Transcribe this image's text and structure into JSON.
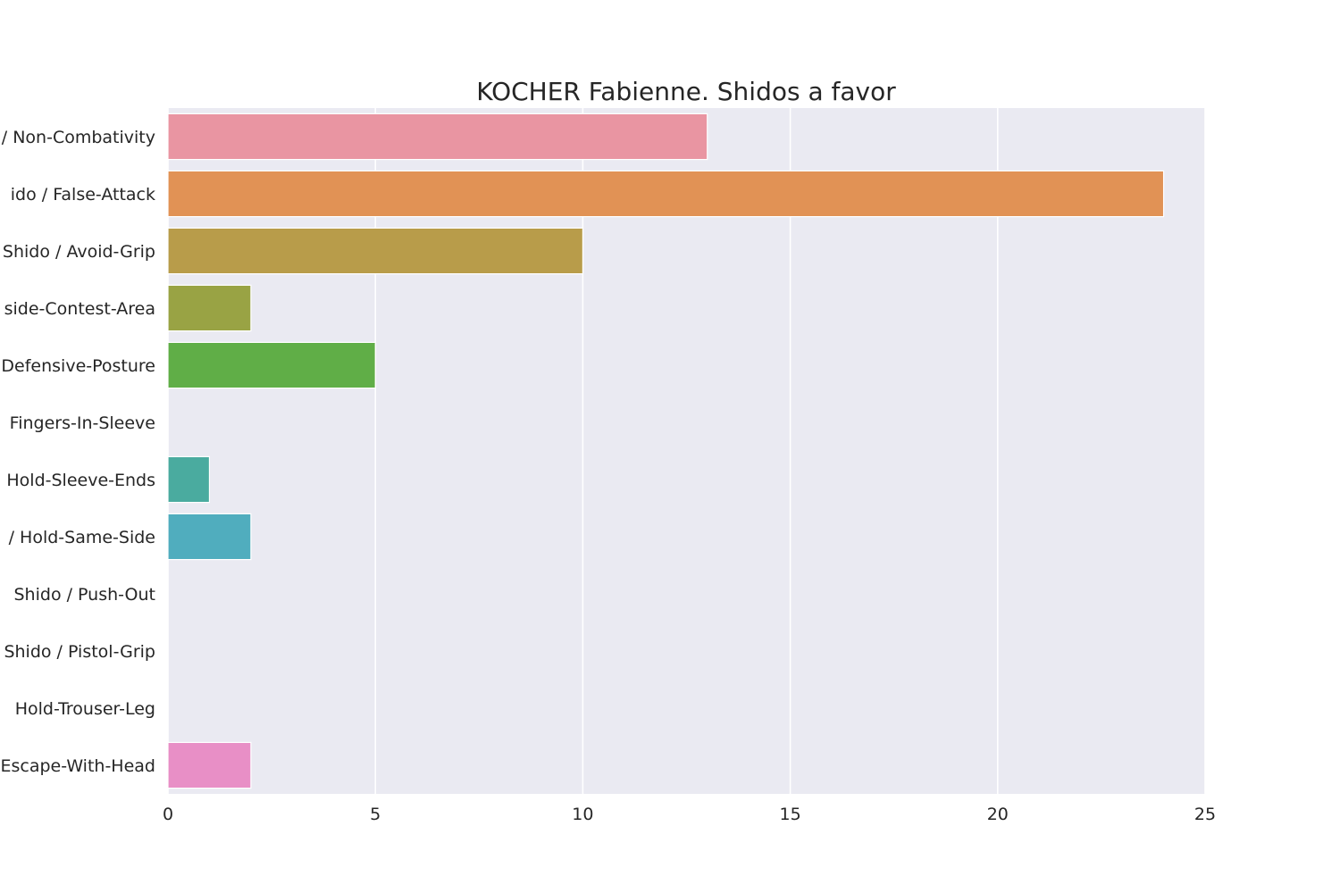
{
  "chart_data": {
    "type": "bar",
    "orientation": "horizontal",
    "title": "KOCHER Fabienne. Shidos a favor",
    "xlabel": "",
    "ylabel": "",
    "xlim": [
      0,
      25
    ],
    "x_ticks": [
      0,
      5,
      10,
      15,
      20,
      25
    ],
    "grid": true,
    "legend": "none",
    "categories": [
      "Shido / Non-Combativity",
      "Shido / False-Attack",
      "Shido / Avoid-Grip",
      "Shido / Outside-Contest-Area",
      "Shido / Defensive-Posture",
      "Shido / Fingers-In-Sleeve",
      "Shido / Hold-Sleeve-Ends",
      "Shido / Hold-Same-Side",
      "Shido / Push-Out",
      "Shido / Pistol-Grip",
      "Shido / Hold-Trouser-Leg",
      "Shido / Escape-With-Head"
    ],
    "category_labels_visible": [
      "/ Non-Combativity",
      "ido / False-Attack",
      "Shido / Avoid-Grip",
      "side-Contest-Area",
      "Defensive-Posture",
      "Fingers-In-Sleeve",
      "Hold-Sleeve-Ends",
      "/ Hold-Same-Side",
      "Shido / Push-Out",
      "Shido / Pistol-Grip",
      "Hold-Trouser-Leg",
      "Escape-With-Head"
    ],
    "values": [
      13,
      24,
      10,
      2,
      5,
      0,
      1,
      2,
      0,
      0,
      0,
      2
    ],
    "colors": [
      "#e995a2",
      "#e19255",
      "#b89c4a",
      "#99a344",
      "#60ae47",
      "#4db08a",
      "#4aab9f",
      "#50adbe",
      "#58a8de",
      "#a89be9",
      "#dd8cdd",
      "#e88fc6"
    ],
    "plot_background": "#eaeaf2",
    "grid_color": "#ffffff"
  }
}
